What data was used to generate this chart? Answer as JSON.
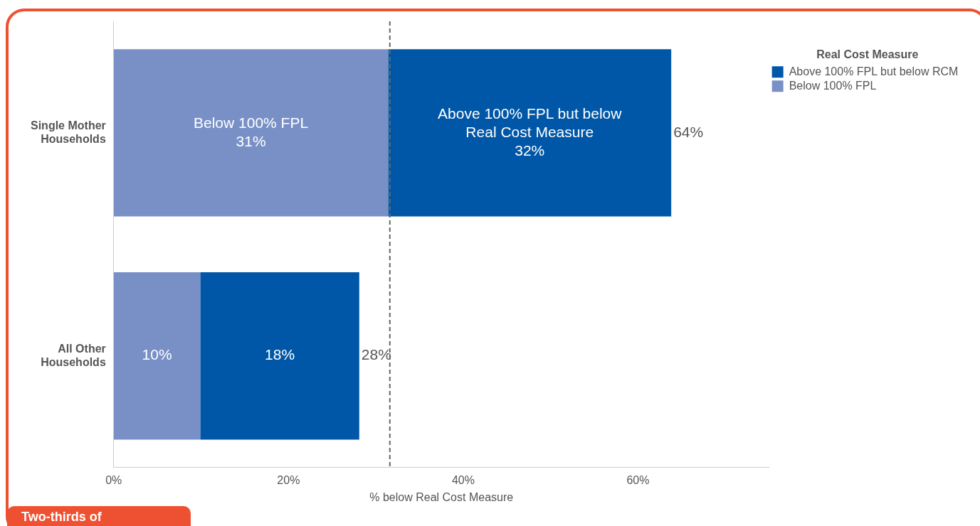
{
  "chart_data": {
    "type": "bar",
    "orientation": "horizontal",
    "stacked": true,
    "categories": [
      "Single Mother Households",
      "All Other Households"
    ],
    "series": [
      {
        "name": "Below 100% FPL",
        "color": "#7990c7",
        "values": [
          31.4,
          9.9
        ],
        "value_labels": [
          "Below 100% FPL\n31%",
          "10%"
        ]
      },
      {
        "name": "Above 100% FPL but below RCM",
        "color": "#0157a7",
        "values": [
          32.4,
          18.2
        ],
        "value_labels": [
          "Above 100% FPL but below\nReal Cost Measure\n32%",
          "18%"
        ]
      }
    ],
    "totals": [
      "64%",
      "28%"
    ],
    "xlim": [
      0,
      75
    ],
    "xticks": [
      {
        "value": 0,
        "label": "0%"
      },
      {
        "value": 20,
        "label": "20%"
      },
      {
        "value": 40,
        "label": "40%"
      },
      {
        "value": 60,
        "label": "60%"
      }
    ],
    "xlabel": "% below Real Cost Measure",
    "legend_title": "Real Cost Measure",
    "legend": "top right",
    "grid": false,
    "ref_lines": [
      {
        "axis": "x",
        "value": 31.6,
        "color": "#666666",
        "line_style": "dashed"
      }
    ],
    "annotations": [
      "Two-thirds of"
    ]
  }
}
